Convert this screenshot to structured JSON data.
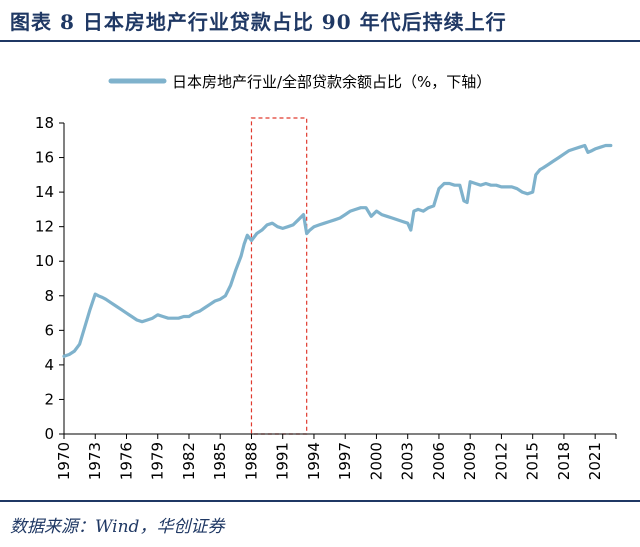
{
  "header": {
    "title": "图表 8 日本房地产行业贷款占比 90 年代后持续上行"
  },
  "footer": {
    "source": "数据来源：Wind，华创证券"
  },
  "colors": {
    "series": "#7FB2CC",
    "accent": "#1F3864",
    "highlight_box": "#E03A2F"
  },
  "chart_data": {
    "type": "line",
    "title": "",
    "xlabel": "",
    "ylabel": "",
    "legend_position": "top",
    "grid": false,
    "ylim": [
      0,
      18
    ],
    "xlim": [
      1970,
      2023
    ],
    "yticks": [
      0,
      2,
      4,
      6,
      8,
      10,
      12,
      14,
      16,
      18
    ],
    "xticks": [
      "1970",
      "1973",
      "1976",
      "1979",
      "1982",
      "1985",
      "1988",
      "1991",
      "1994",
      "1997",
      "2000",
      "2003",
      "2006",
      "2009",
      "2012",
      "2015",
      "2018",
      "2021"
    ],
    "highlight": {
      "from": 1988,
      "to": 1993.3
    },
    "series": [
      {
        "name": "日本房地产行业/全部贷款余额占比（%，下轴）",
        "x": [
          1970,
          1970.5,
          1971,
          1971.5,
          1972,
          1972.5,
          1973,
          1973.3,
          1973.7,
          1974,
          1974.5,
          1975,
          1975.5,
          1976,
          1976.5,
          1977,
          1977.5,
          1978,
          1978.5,
          1979,
          1979.5,
          1980,
          1980.5,
          1981,
          1981.5,
          1982,
          1982.5,
          1983,
          1983.5,
          1984,
          1984.5,
          1985,
          1985.5,
          1986,
          1986.5,
          1987,
          1987.3,
          1987.6,
          1988,
          1988.5,
          1989,
          1989.5,
          1990,
          1990.5,
          1991,
          1991.5,
          1992,
          1992.5,
          1993,
          1993.3,
          1993.6,
          1994,
          1994.5,
          1995,
          1995.5,
          1996,
          1996.5,
          1997,
          1997.5,
          1998,
          1998.5,
          1999,
          1999.5,
          2000,
          2000.5,
          2001,
          2001.5,
          2002,
          2002.5,
          2003,
          2003.3,
          2003.6,
          2004,
          2004.5,
          2005,
          2005.5,
          2006,
          2006.5,
          2007,
          2007.5,
          2008,
          2008.4,
          2008.7,
          2009,
          2009.5,
          2010,
          2010.5,
          2011,
          2011.5,
          2012,
          2012.5,
          2013,
          2013.5,
          2014,
          2014.5,
          2015,
          2015.3,
          2015.7,
          2016,
          2016.5,
          2017,
          2017.5,
          2018,
          2018.5,
          2019,
          2019.5,
          2020,
          2020.3,
          2020.7,
          2021,
          2021.5,
          2022,
          2022.5
        ],
        "y": [
          4.5,
          4.6,
          4.8,
          5.2,
          6.2,
          7.2,
          8.1,
          8.0,
          7.9,
          7.8,
          7.6,
          7.4,
          7.2,
          7.0,
          6.8,
          6.6,
          6.5,
          6.6,
          6.7,
          6.9,
          6.8,
          6.7,
          6.7,
          6.7,
          6.8,
          6.8,
          7.0,
          7.1,
          7.3,
          7.5,
          7.7,
          7.8,
          8.0,
          8.6,
          9.5,
          10.3,
          11.0,
          11.5,
          11.2,
          11.6,
          11.8,
          12.1,
          12.2,
          12.0,
          11.9,
          12.0,
          12.1,
          12.4,
          12.7,
          11.6,
          11.8,
          12.0,
          12.1,
          12.2,
          12.3,
          12.4,
          12.5,
          12.7,
          12.9,
          13.0,
          13.1,
          13.1,
          12.6,
          12.9,
          12.7,
          12.6,
          12.5,
          12.4,
          12.3,
          12.2,
          11.8,
          12.9,
          13.0,
          12.9,
          13.1,
          13.2,
          14.2,
          14.5,
          14.5,
          14.4,
          14.4,
          13.5,
          13.4,
          14.6,
          14.5,
          14.4,
          14.5,
          14.4,
          14.4,
          14.3,
          14.3,
          14.3,
          14.2,
          14.0,
          13.9,
          14.0,
          15.0,
          15.3,
          15.4,
          15.6,
          15.8,
          16.0,
          16.2,
          16.4,
          16.5,
          16.6,
          16.7,
          16.3,
          16.4,
          16.5,
          16.6,
          16.7,
          16.7
        ]
      }
    ]
  }
}
